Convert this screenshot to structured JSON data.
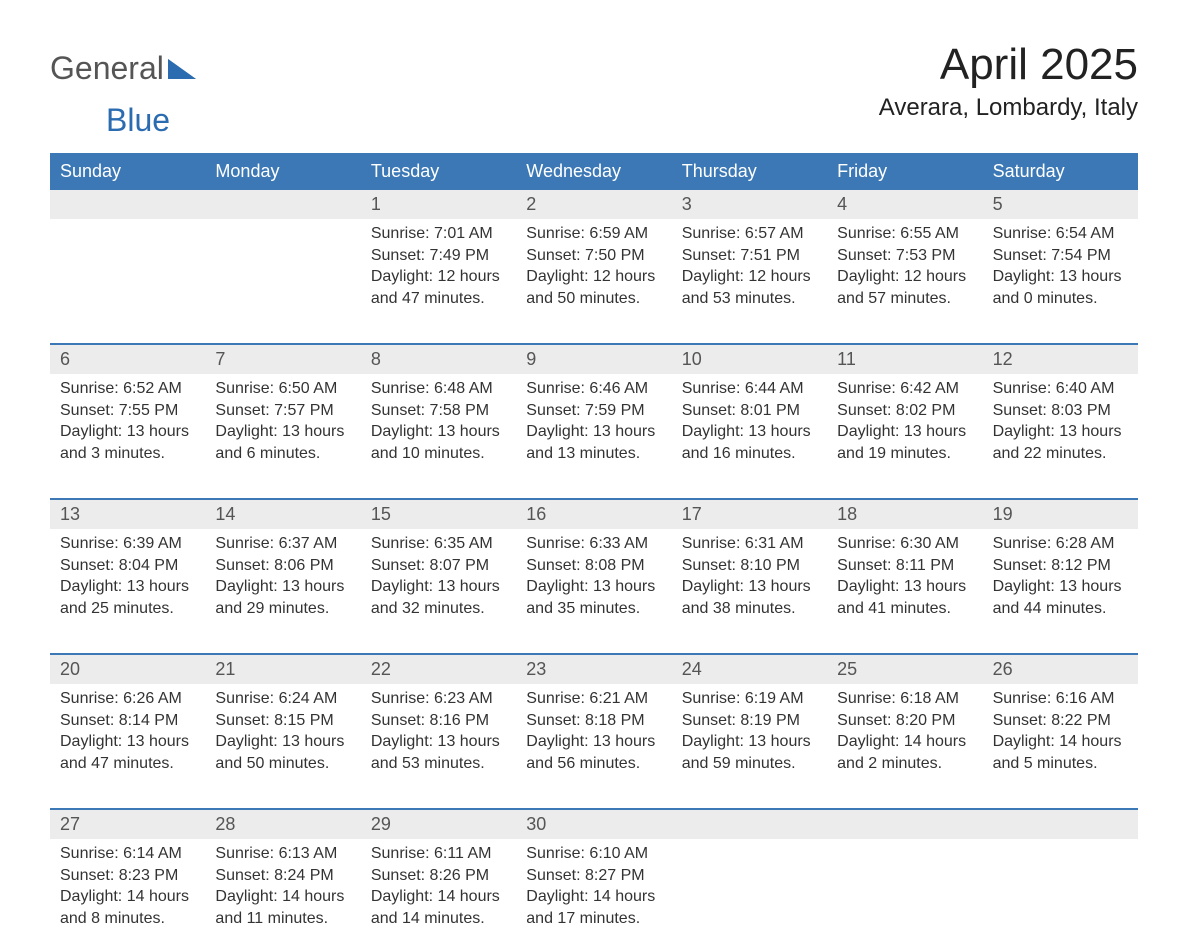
{
  "logo": {
    "text_general": "General",
    "text_blue": "Blue",
    "shape_color": "#2b6cb0"
  },
  "title": "April 2025",
  "location": "Averara, Lombardy, Italy",
  "colors": {
    "header_bg": "#3b78b5",
    "header_text": "#ffffff",
    "daynum_bg": "#ececec",
    "border": "#3b78b5",
    "text": "#333333",
    "title_text": "#222222",
    "logo_gray": "#555555",
    "logo_blue": "#2b6cb0",
    "background": "#ffffff"
  },
  "typography": {
    "title_fontsize": 44,
    "location_fontsize": 24,
    "weekday_fontsize": 18,
    "daynum_fontsize": 18,
    "body_fontsize": 16,
    "logo_fontsize": 32,
    "font_family": "Segoe UI, Arial, sans-serif"
  },
  "weekdays": [
    "Sunday",
    "Monday",
    "Tuesday",
    "Wednesday",
    "Thursday",
    "Friday",
    "Saturday"
  ],
  "weeks": [
    [
      {
        "num": "",
        "lines": [
          "",
          "",
          "",
          ""
        ]
      },
      {
        "num": "",
        "lines": [
          "",
          "",
          "",
          ""
        ]
      },
      {
        "num": "1",
        "lines": [
          "Sunrise: 7:01 AM",
          "Sunset: 7:49 PM",
          "Daylight: 12 hours",
          "and 47 minutes."
        ]
      },
      {
        "num": "2",
        "lines": [
          "Sunrise: 6:59 AM",
          "Sunset: 7:50 PM",
          "Daylight: 12 hours",
          "and 50 minutes."
        ]
      },
      {
        "num": "3",
        "lines": [
          "Sunrise: 6:57 AM",
          "Sunset: 7:51 PM",
          "Daylight: 12 hours",
          "and 53 minutes."
        ]
      },
      {
        "num": "4",
        "lines": [
          "Sunrise: 6:55 AM",
          "Sunset: 7:53 PM",
          "Daylight: 12 hours",
          "and 57 minutes."
        ]
      },
      {
        "num": "5",
        "lines": [
          "Sunrise: 6:54 AM",
          "Sunset: 7:54 PM",
          "Daylight: 13 hours",
          "and 0 minutes."
        ]
      }
    ],
    [
      {
        "num": "6",
        "lines": [
          "Sunrise: 6:52 AM",
          "Sunset: 7:55 PM",
          "Daylight: 13 hours",
          "and 3 minutes."
        ]
      },
      {
        "num": "7",
        "lines": [
          "Sunrise: 6:50 AM",
          "Sunset: 7:57 PM",
          "Daylight: 13 hours",
          "and 6 minutes."
        ]
      },
      {
        "num": "8",
        "lines": [
          "Sunrise: 6:48 AM",
          "Sunset: 7:58 PM",
          "Daylight: 13 hours",
          "and 10 minutes."
        ]
      },
      {
        "num": "9",
        "lines": [
          "Sunrise: 6:46 AM",
          "Sunset: 7:59 PM",
          "Daylight: 13 hours",
          "and 13 minutes."
        ]
      },
      {
        "num": "10",
        "lines": [
          "Sunrise: 6:44 AM",
          "Sunset: 8:01 PM",
          "Daylight: 13 hours",
          "and 16 minutes."
        ]
      },
      {
        "num": "11",
        "lines": [
          "Sunrise: 6:42 AM",
          "Sunset: 8:02 PM",
          "Daylight: 13 hours",
          "and 19 minutes."
        ]
      },
      {
        "num": "12",
        "lines": [
          "Sunrise: 6:40 AM",
          "Sunset: 8:03 PM",
          "Daylight: 13 hours",
          "and 22 minutes."
        ]
      }
    ],
    [
      {
        "num": "13",
        "lines": [
          "Sunrise: 6:39 AM",
          "Sunset: 8:04 PM",
          "Daylight: 13 hours",
          "and 25 minutes."
        ]
      },
      {
        "num": "14",
        "lines": [
          "Sunrise: 6:37 AM",
          "Sunset: 8:06 PM",
          "Daylight: 13 hours",
          "and 29 minutes."
        ]
      },
      {
        "num": "15",
        "lines": [
          "Sunrise: 6:35 AM",
          "Sunset: 8:07 PM",
          "Daylight: 13 hours",
          "and 32 minutes."
        ]
      },
      {
        "num": "16",
        "lines": [
          "Sunrise: 6:33 AM",
          "Sunset: 8:08 PM",
          "Daylight: 13 hours",
          "and 35 minutes."
        ]
      },
      {
        "num": "17",
        "lines": [
          "Sunrise: 6:31 AM",
          "Sunset: 8:10 PM",
          "Daylight: 13 hours",
          "and 38 minutes."
        ]
      },
      {
        "num": "18",
        "lines": [
          "Sunrise: 6:30 AM",
          "Sunset: 8:11 PM",
          "Daylight: 13 hours",
          "and 41 minutes."
        ]
      },
      {
        "num": "19",
        "lines": [
          "Sunrise: 6:28 AM",
          "Sunset: 8:12 PM",
          "Daylight: 13 hours",
          "and 44 minutes."
        ]
      }
    ],
    [
      {
        "num": "20",
        "lines": [
          "Sunrise: 6:26 AM",
          "Sunset: 8:14 PM",
          "Daylight: 13 hours",
          "and 47 minutes."
        ]
      },
      {
        "num": "21",
        "lines": [
          "Sunrise: 6:24 AM",
          "Sunset: 8:15 PM",
          "Daylight: 13 hours",
          "and 50 minutes."
        ]
      },
      {
        "num": "22",
        "lines": [
          "Sunrise: 6:23 AM",
          "Sunset: 8:16 PM",
          "Daylight: 13 hours",
          "and 53 minutes."
        ]
      },
      {
        "num": "23",
        "lines": [
          "Sunrise: 6:21 AM",
          "Sunset: 8:18 PM",
          "Daylight: 13 hours",
          "and 56 minutes."
        ]
      },
      {
        "num": "24",
        "lines": [
          "Sunrise: 6:19 AM",
          "Sunset: 8:19 PM",
          "Daylight: 13 hours",
          "and 59 minutes."
        ]
      },
      {
        "num": "25",
        "lines": [
          "Sunrise: 6:18 AM",
          "Sunset: 8:20 PM",
          "Daylight: 14 hours",
          "and 2 minutes."
        ]
      },
      {
        "num": "26",
        "lines": [
          "Sunrise: 6:16 AM",
          "Sunset: 8:22 PM",
          "Daylight: 14 hours",
          "and 5 minutes."
        ]
      }
    ],
    [
      {
        "num": "27",
        "lines": [
          "Sunrise: 6:14 AM",
          "Sunset: 8:23 PM",
          "Daylight: 14 hours",
          "and 8 minutes."
        ]
      },
      {
        "num": "28",
        "lines": [
          "Sunrise: 6:13 AM",
          "Sunset: 8:24 PM",
          "Daylight: 14 hours",
          "and 11 minutes."
        ]
      },
      {
        "num": "29",
        "lines": [
          "Sunrise: 6:11 AM",
          "Sunset: 8:26 PM",
          "Daylight: 14 hours",
          "and 14 minutes."
        ]
      },
      {
        "num": "30",
        "lines": [
          "Sunrise: 6:10 AM",
          "Sunset: 8:27 PM",
          "Daylight: 14 hours",
          "and 17 minutes."
        ]
      },
      {
        "num": "",
        "lines": [
          "",
          "",
          "",
          ""
        ]
      },
      {
        "num": "",
        "lines": [
          "",
          "",
          "",
          ""
        ]
      },
      {
        "num": "",
        "lines": [
          "",
          "",
          "",
          ""
        ]
      }
    ]
  ]
}
